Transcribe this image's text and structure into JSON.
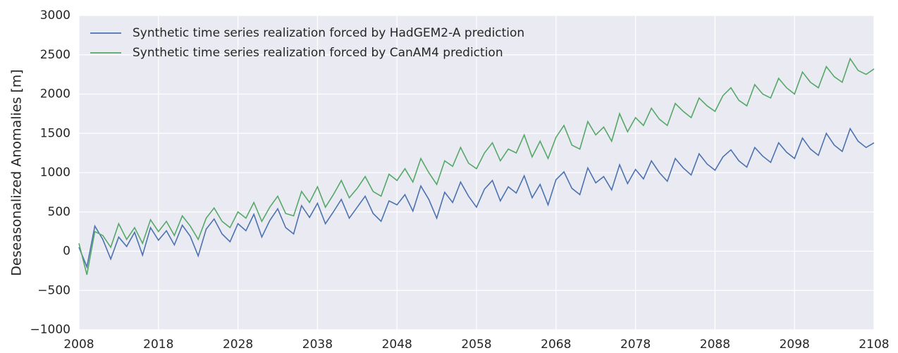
{
  "chart_data": {
    "type": "line",
    "ylabel": "Deseasonalized Anomalies [m]",
    "x": [
      2008,
      2009,
      2010,
      2011,
      2012,
      2013,
      2014,
      2015,
      2016,
      2017,
      2018,
      2019,
      2020,
      2021,
      2022,
      2023,
      2024,
      2025,
      2026,
      2027,
      2028,
      2029,
      2030,
      2031,
      2032,
      2033,
      2034,
      2035,
      2036,
      2037,
      2038,
      2039,
      2040,
      2041,
      2042,
      2043,
      2044,
      2045,
      2046,
      2047,
      2048,
      2049,
      2050,
      2051,
      2052,
      2053,
      2054,
      2055,
      2056,
      2057,
      2058,
      2059,
      2060,
      2061,
      2062,
      2063,
      2064,
      2065,
      2066,
      2067,
      2068,
      2069,
      2070,
      2071,
      2072,
      2073,
      2074,
      2075,
      2076,
      2077,
      2078,
      2079,
      2080,
      2081,
      2082,
      2083,
      2084,
      2085,
      2086,
      2087,
      2088,
      2089,
      2090,
      2091,
      2092,
      2093,
      2094,
      2095,
      2096,
      2097,
      2098,
      2099,
      2100,
      2101,
      2102,
      2103,
      2104,
      2105,
      2106,
      2107,
      2108
    ],
    "series": [
      {
        "name": "Synthetic time series realization forced by HadGEM2-A prediction",
        "color": "#4c72b0",
        "values": [
          50,
          -200,
          320,
          150,
          -100,
          180,
          60,
          240,
          -50,
          300,
          140,
          260,
          80,
          330,
          190,
          -60,
          280,
          410,
          220,
          120,
          350,
          260,
          470,
          180,
          390,
          540,
          300,
          220,
          580,
          430,
          610,
          350,
          500,
          660,
          420,
          560,
          700,
          480,
          380,
          640,
          590,
          720,
          510,
          830,
          660,
          420,
          750,
          620,
          880,
          700,
          560,
          790,
          900,
          640,
          820,
          740,
          960,
          680,
          850,
          590,
          910,
          1010,
          800,
          720,
          1060,
          870,
          950,
          780,
          1100,
          860,
          1040,
          920,
          1150,
          1000,
          890,
          1180,
          1060,
          970,
          1240,
          1110,
          1030,
          1200,
          1290,
          1150,
          1070,
          1320,
          1210,
          1130,
          1380,
          1260,
          1180,
          1440,
          1300,
          1220,
          1500,
          1350,
          1270,
          1560,
          1400,
          1320,
          1380
        ]
      },
      {
        "name": "Synthetic time series realization forced by CanAM4 prediction",
        "color": "#55a868",
        "values": [
          100,
          -300,
          250,
          200,
          50,
          350,
          150,
          300,
          100,
          400,
          250,
          380,
          200,
          450,
          320,
          150,
          420,
          550,
          380,
          300,
          500,
          420,
          620,
          380,
          560,
          700,
          480,
          450,
          760,
          620,
          820,
          560,
          720,
          900,
          680,
          800,
          950,
          760,
          700,
          980,
          900,
          1050,
          880,
          1180,
          1000,
          850,
          1150,
          1080,
          1320,
          1120,
          1050,
          1250,
          1380,
          1150,
          1300,
          1250,
          1480,
          1200,
          1400,
          1180,
          1450,
          1600,
          1350,
          1300,
          1650,
          1480,
          1580,
          1400,
          1750,
          1520,
          1700,
          1600,
          1820,
          1680,
          1600,
          1880,
          1780,
          1700,
          1950,
          1850,
          1780,
          1980,
          2080,
          1920,
          1850,
          2120,
          2000,
          1950,
          2200,
          2080,
          2000,
          2280,
          2150,
          2080,
          2350,
          2220,
          2150,
          2450,
          2300,
          2250,
          2320
        ]
      }
    ],
    "xlim": [
      2008,
      2108
    ],
    "xticks": [
      2008,
      2018,
      2028,
      2038,
      2048,
      2058,
      2068,
      2078,
      2088,
      2098,
      2108
    ],
    "ylim": [
      -1000,
      3000
    ],
    "yticks": [
      {
        "value": -1000,
        "label": "−1000"
      },
      {
        "value": -500,
        "label": "−500"
      },
      0,
      500,
      1000,
      1500,
      2000,
      2500,
      3000
    ],
    "grid": true,
    "legend": "upper left"
  }
}
